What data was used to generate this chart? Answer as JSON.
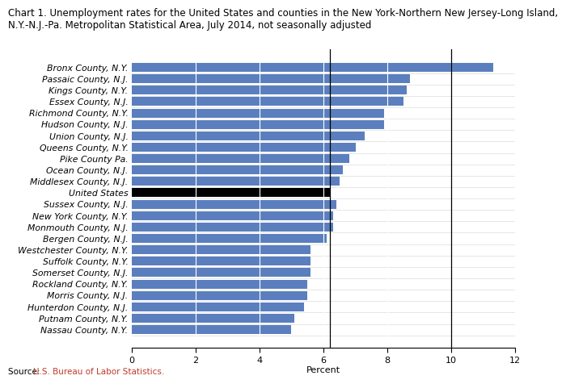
{
  "title_line1": "Chart 1. Unemployment rates for the United States and counties in the New York-Northern New Jersey-Long Island,",
  "title_line2": "N.Y.-N.J.-Pa. Metropolitan Statistical Area, July 2014, not seasonally adjusted",
  "categories": [
    "Nassau County, N.Y.",
    "Putnam County, N.Y.",
    "Hunterdon County, N.J.",
    "Morris County, N.J.",
    "Rockland County, N.Y.",
    "Somerset County, N.J.",
    "Suffolk County, N.Y.",
    "Westchester County, N.Y.",
    "Bergen County, N.J.",
    "Monmouth County, N.J.",
    "New York County, N.Y.",
    "Sussex County, N.J.",
    "United States",
    "Middlesex County, N.J.",
    "Ocean County, N.J.",
    "Pike County Pa.",
    "Queens County, N.Y.",
    "Union County, N.J.",
    "Hudson County, N.J.",
    "Richmond County, N.Y.",
    "Essex County, N.J.",
    "Kings County, N.Y.",
    "Passaic County, N.J.",
    "Bronx County, N.Y."
  ],
  "values": [
    5.0,
    5.1,
    5.4,
    5.5,
    5.5,
    5.6,
    5.6,
    5.6,
    6.1,
    6.3,
    6.3,
    6.4,
    6.2,
    6.5,
    6.6,
    6.8,
    7.0,
    7.3,
    7.9,
    7.9,
    8.5,
    8.6,
    8.7,
    11.3
  ],
  "bar_color_default": "#5b7fbe",
  "bar_color_us": "#000000",
  "vline_positions": [
    6.2,
    10.0
  ],
  "xlabel": "Percent",
  "source_prefix": "Source: ",
  "source_agency": "U.S. Bureau of Labor Statistics.",
  "source_agency_color": "#c0392b",
  "xlim": [
    0,
    12
  ],
  "xticks": [
    0,
    2,
    4,
    6,
    8,
    10,
    12
  ],
  "title_fontsize": 8.5,
  "label_fontsize": 7.8,
  "tick_fontsize": 8,
  "source_fontsize": 7.5,
  "bar_height": 0.78
}
